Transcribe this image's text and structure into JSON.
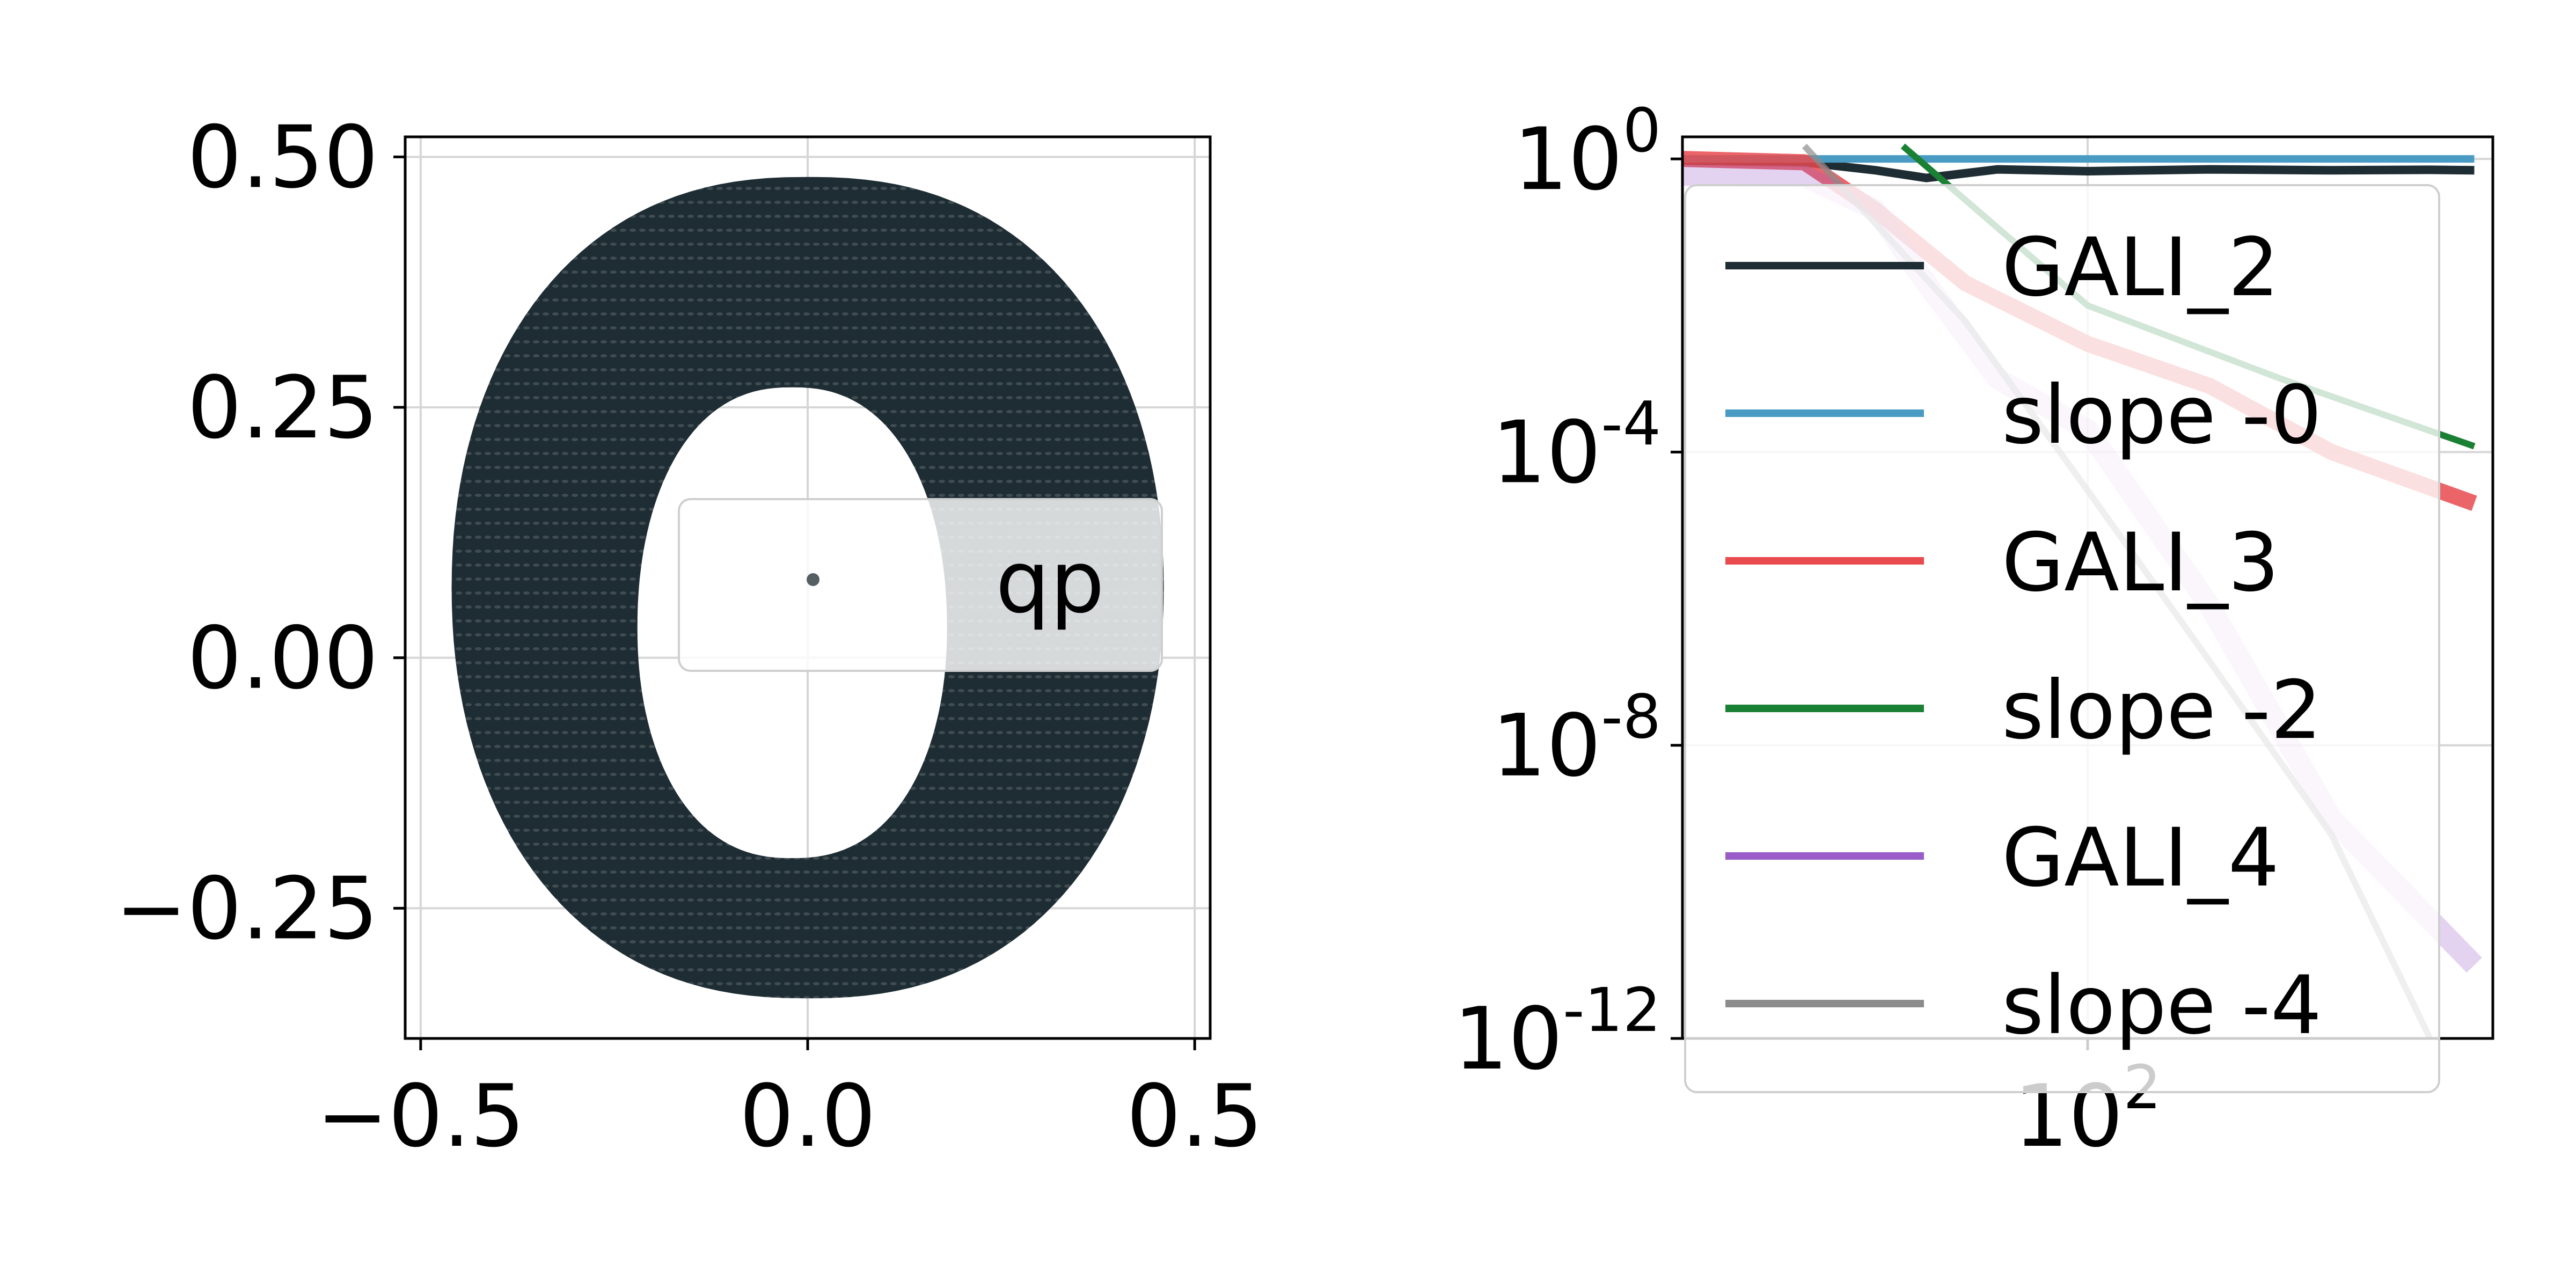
{
  "chart_data": [
    {
      "type": "scatter",
      "title": "",
      "xlabel": "",
      "ylabel": "",
      "xlim": [
        -0.52,
        0.52
      ],
      "ylim": [
        -0.38,
        0.52
      ],
      "grid": true,
      "x_ticks": [
        {
          "value": -0.5,
          "label": "−0.5"
        },
        {
          "value": 0.0,
          "label": "0.0"
        },
        {
          "value": 0.5,
          "label": "0.5"
        }
      ],
      "y_ticks": [
        {
          "value": 0.5,
          "label": "0.50"
        },
        {
          "value": 0.25,
          "label": "0.25"
        },
        {
          "value": 0.0,
          "label": "0.00"
        },
        {
          "value": -0.25,
          "label": "−0.25"
        }
      ],
      "legend": {
        "position": "center-right",
        "entries": [
          {
            "name": "qp",
            "color": "#555f63"
          }
        ]
      },
      "series": [
        {
          "name": "qp",
          "color": "#1e2d33",
          "shape": "ring",
          "outer": {
            "center": [
              0.0,
              0.07
            ],
            "x_half_width": 0.46,
            "y_top": 0.48,
            "y_bottom": -0.34
          },
          "inner": {
            "center": [
              -0.02,
              0.03
            ],
            "x_half_width": 0.2,
            "y_top": 0.27,
            "y_bottom": -0.2
          }
        }
      ]
    },
    {
      "type": "line",
      "title": "",
      "xlabel": "",
      "ylabel": "",
      "xscale": "log",
      "yscale": "log",
      "xlim": [
        10,
        1000
      ],
      "ylim": [
        1e-12,
        2
      ],
      "grid": true,
      "x_ticks": [
        {
          "value": 100,
          "base": "10",
          "exp": "2"
        }
      ],
      "y_ticks": [
        {
          "value": 1,
          "base": "10",
          "exp": "0"
        },
        {
          "value": 0.0001,
          "base": "10",
          "exp": "-4"
        },
        {
          "value": 1e-08,
          "base": "10",
          "exp": "-8"
        },
        {
          "value": 1e-12,
          "base": "10",
          "exp": "-12"
        }
      ],
      "legend": {
        "position": "upper-left",
        "entries": [
          {
            "name": "GALI_2",
            "color": "#1e2d33"
          },
          {
            "name": "slope -0",
            "color": "#4a9bc3"
          },
          {
            "name": "GALI_3",
            "color": "#e84a4e"
          },
          {
            "name": "slope -2",
            "color": "#1a8034"
          },
          {
            "name": "GALI_4",
            "color": "#9a5cc8"
          },
          {
            "name": "slope -4",
            "color": "#8c8c8c"
          }
        ]
      },
      "series": [
        {
          "name": "GALI_2",
          "color": "#1e2d33",
          "x": [
            10,
            20,
            30,
            40,
            60,
            100,
            200,
            400,
            700,
            900
          ],
          "y": [
            0.95,
            0.9,
            0.7,
            0.55,
            0.72,
            0.68,
            0.72,
            0.7,
            0.71,
            0.7
          ]
        },
        {
          "name": "slope -0",
          "color": "#4a9bc3",
          "x": [
            10,
            900
          ],
          "y": [
            1,
            1
          ]
        },
        {
          "name": "GALI_3",
          "color": "#e84a4e",
          "x": [
            10,
            20,
            30,
            50,
            100,
            200,
            400,
            900
          ],
          "y": [
            1,
            0.9,
            0.2,
            0.02,
            0.003,
            0.0008,
            0.0001,
            2e-05
          ]
        },
        {
          "name": "slope -2",
          "color": "#1a8034",
          "x": [
            35,
            100,
            300,
            900
          ],
          "y": [
            1.5,
            0.01,
            0.001,
            0.00012
          ]
        },
        {
          "name": "GALI_4",
          "color": "#9a5cc8",
          "x": [
            10,
            20,
            30,
            40,
            60,
            100,
            200,
            400,
            900
          ],
          "y": [
            0.6,
            0.58,
            0.2,
            0.02,
            0.001,
            0.0002,
            8e-07,
            1e-09,
            1e-11
          ]
        },
        {
          "name": "slope -4",
          "color": "#8c8c8c",
          "x": [
            20,
            50,
            100,
            200,
            400,
            700
          ],
          "y": [
            1.5,
            0.006,
            3e-05,
            1.4e-07,
            6e-10,
            1e-12
          ]
        }
      ]
    }
  ]
}
